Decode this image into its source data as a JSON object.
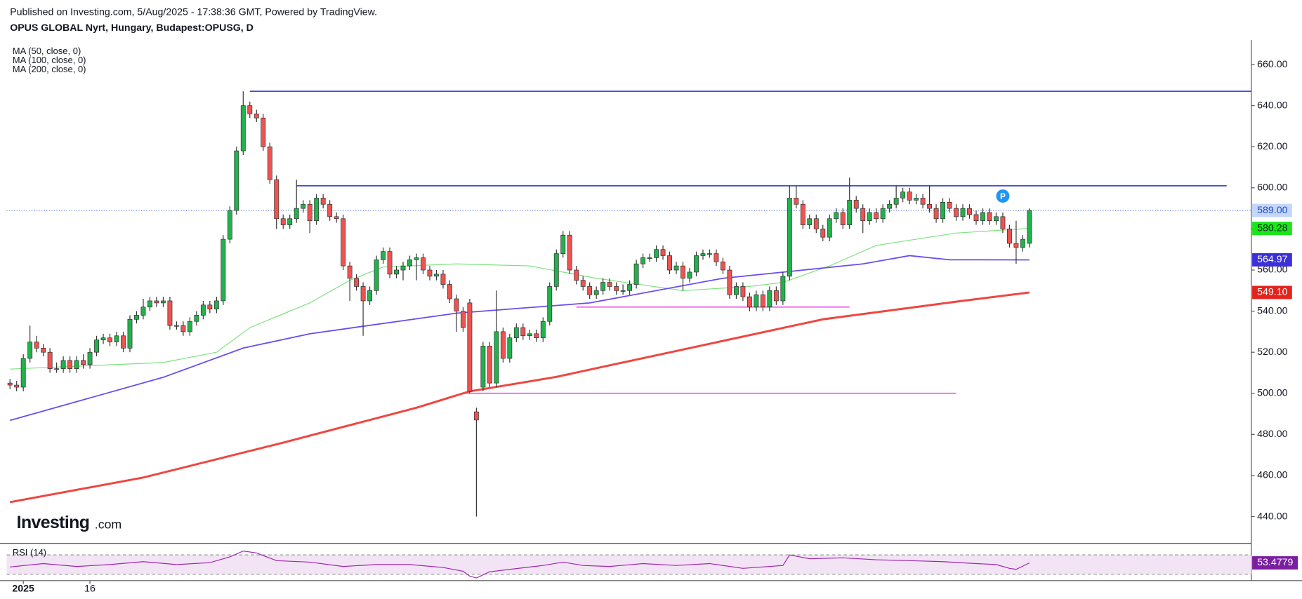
{
  "header": {
    "published": "Published on Investing.com, 5/Aug/2025 - 17:38:36 GMT, Powered by TradingView.",
    "symbol": "OPUS GLOBAL Nyrt, Hungary, Budapest:OPUSG, D"
  },
  "chart_data": {
    "type": "candlestick",
    "up_color": "#22b24c",
    "down_color": "#ef5350",
    "candles": [
      [
        505,
        507,
        502,
        504
      ],
      [
        504,
        506,
        501,
        503
      ],
      [
        503,
        519,
        501,
        517
      ],
      [
        517,
        533,
        515,
        525
      ],
      [
        525,
        528,
        520,
        522
      ],
      [
        522,
        524,
        518,
        520
      ],
      [
        520,
        522,
        510,
        512
      ],
      [
        512,
        515,
        510,
        512
      ],
      [
        512,
        518,
        510,
        516
      ],
      [
        516,
        518,
        510,
        512
      ],
      [
        512,
        518,
        510,
        516
      ],
      [
        516,
        519,
        512,
        514
      ],
      [
        514,
        522,
        512,
        520
      ],
      [
        520,
        528,
        518,
        526
      ],
      [
        526,
        529,
        524,
        527
      ],
      [
        527,
        529,
        523,
        525
      ],
      [
        525,
        530,
        523,
        528
      ],
      [
        528,
        530,
        520,
        522
      ],
      [
        522,
        538,
        520,
        536
      ],
      [
        536,
        540,
        534,
        538
      ],
      [
        538,
        546,
        536,
        542
      ],
      [
        542,
        547,
        540,
        545
      ],
      [
        545,
        547,
        542,
        544
      ],
      [
        544,
        547,
        542,
        545
      ],
      [
        545,
        547,
        531,
        533
      ],
      [
        533,
        535,
        531,
        533
      ],
      [
        533,
        535,
        528,
        530
      ],
      [
        530,
        537,
        528,
        535
      ],
      [
        535,
        540,
        533,
        538
      ],
      [
        538,
        545,
        536,
        543
      ],
      [
        543,
        545,
        539,
        541
      ],
      [
        541,
        547,
        539,
        545
      ],
      [
        545,
        577,
        543,
        575
      ],
      [
        575,
        591,
        573,
        589
      ],
      [
        589,
        620,
        587,
        618
      ],
      [
        618,
        647,
        616,
        640
      ],
      [
        640,
        642,
        634,
        636
      ],
      [
        636,
        638,
        632,
        634
      ],
      [
        634,
        636,
        618,
        620
      ],
      [
        620,
        622,
        602,
        604
      ],
      [
        604,
        606,
        580,
        585
      ],
      [
        585,
        587,
        580,
        582
      ],
      [
        582,
        587,
        580,
        585
      ],
      [
        585,
        604,
        583,
        590
      ],
      [
        590,
        594,
        588,
        592
      ],
      [
        592,
        594,
        578,
        584
      ],
      [
        584,
        597,
        582,
        595
      ],
      [
        595,
        597,
        590,
        592
      ],
      [
        592,
        594,
        584,
        586
      ],
      [
        586,
        588,
        583,
        585
      ],
      [
        585,
        587,
        560,
        562
      ],
      [
        562,
        564,
        545,
        556
      ],
      [
        556,
        558,
        550,
        552
      ],
      [
        552,
        554,
        528,
        545
      ],
      [
        545,
        552,
        543,
        550
      ],
      [
        550,
        567,
        548,
        565
      ],
      [
        565,
        571,
        563,
        569
      ],
      [
        569,
        571,
        556,
        558
      ],
      [
        558,
        562,
        556,
        560
      ],
      [
        560,
        564,
        555,
        562
      ],
      [
        562,
        567,
        560,
        565
      ],
      [
        565,
        568,
        555,
        566
      ],
      [
        566,
        568,
        558,
        560
      ],
      [
        560,
        562,
        555,
        557
      ],
      [
        557,
        560,
        555,
        558
      ],
      [
        558,
        560,
        551,
        553
      ],
      [
        553,
        555,
        544,
        546
      ],
      [
        546,
        548,
        530,
        540
      ],
      [
        540,
        542,
        530,
        532
      ],
      [
        544,
        546,
        500,
        501
      ],
      [
        491,
        493,
        440,
        487
      ],
      [
        503,
        525,
        501,
        523
      ],
      [
        523,
        525,
        503,
        505
      ],
      [
        505,
        550,
        503,
        530
      ],
      [
        530,
        532,
        515,
        517
      ],
      [
        517,
        529,
        515,
        527
      ],
      [
        527,
        534,
        525,
        532
      ],
      [
        532,
        534,
        526,
        528
      ],
      [
        528,
        531,
        526,
        529
      ],
      [
        529,
        531,
        525,
        527
      ],
      [
        527,
        537,
        525,
        535
      ],
      [
        535,
        554,
        533,
        552
      ],
      [
        552,
        570,
        550,
        568
      ],
      [
        568,
        579,
        566,
        577
      ],
      [
        577,
        579,
        558,
        560
      ],
      [
        560,
        562,
        553,
        555
      ],
      [
        555,
        557,
        550,
        552
      ],
      [
        552,
        554,
        546,
        548
      ],
      [
        548,
        552,
        546,
        550
      ],
      [
        550,
        556,
        548,
        554
      ],
      [
        554,
        556,
        550,
        552
      ],
      [
        552,
        554,
        548,
        550
      ],
      [
        550,
        553,
        548,
        550
      ],
      [
        550,
        555,
        548,
        553
      ],
      [
        553,
        565,
        551,
        563
      ],
      [
        563,
        568,
        561,
        566
      ],
      [
        566,
        568,
        564,
        566
      ],
      [
        566,
        572,
        564,
        570
      ],
      [
        570,
        572,
        565,
        567
      ],
      [
        567,
        569,
        558,
        560
      ],
      [
        560,
        564,
        558,
        562
      ],
      [
        562,
        564,
        550,
        556
      ],
      [
        556,
        561,
        554,
        559
      ],
      [
        559,
        569,
        557,
        567
      ],
      [
        567,
        570,
        565,
        568
      ],
      [
        568,
        570,
        566,
        568
      ],
      [
        568,
        570,
        562,
        564
      ],
      [
        564,
        566,
        558,
        560
      ],
      [
        560,
        562,
        546,
        548
      ],
      [
        548,
        554,
        546,
        552
      ],
      [
        552,
        554,
        545,
        547
      ],
      [
        547,
        549,
        540,
        542
      ],
      [
        542,
        550,
        540,
        548
      ],
      [
        548,
        550,
        540,
        542
      ],
      [
        542,
        552,
        540,
        550
      ],
      [
        550,
        552,
        543,
        545
      ],
      [
        545,
        559,
        543,
        557
      ],
      [
        557,
        601,
        555,
        595
      ],
      [
        595,
        601,
        590,
        592
      ],
      [
        592,
        594,
        580,
        582
      ],
      [
        582,
        587,
        580,
        585
      ],
      [
        585,
        587,
        578,
        580
      ],
      [
        580,
        582,
        574,
        576
      ],
      [
        576,
        587,
        574,
        585
      ],
      [
        585,
        590,
        583,
        588
      ],
      [
        588,
        590,
        580,
        582
      ],
      [
        582,
        605,
        580,
        594
      ],
      [
        594,
        596,
        588,
        590
      ],
      [
        590,
        592,
        578,
        584
      ],
      [
        584,
        590,
        582,
        588
      ],
      [
        588,
        590,
        583,
        585
      ],
      [
        585,
        592,
        583,
        590
      ],
      [
        590,
        594,
        588,
        592
      ],
      [
        592,
        601,
        590,
        595
      ],
      [
        595,
        600,
        593,
        598
      ],
      [
        598,
        600,
        592,
        594
      ],
      [
        594,
        597,
        592,
        595
      ],
      [
        595,
        597,
        590,
        592
      ],
      [
        592,
        601,
        588,
        590
      ],
      [
        590,
        592,
        583,
        585
      ],
      [
        585,
        595,
        583,
        593
      ],
      [
        593,
        595,
        588,
        590
      ],
      [
        590,
        592,
        584,
        586
      ],
      [
        586,
        592,
        584,
        590
      ],
      [
        590,
        592,
        585,
        587
      ],
      [
        587,
        589,
        582,
        584
      ],
      [
        584,
        590,
        582,
        588
      ],
      [
        588,
        590,
        582,
        584
      ],
      [
        584,
        588,
        582,
        586
      ],
      [
        586,
        588,
        578,
        580
      ],
      [
        580,
        582,
        571,
        573
      ],
      [
        573,
        584,
        563,
        571
      ],
      [
        571,
        577,
        569,
        575
      ],
      [
        573,
        590,
        571,
        589
      ]
    ],
    "xlim": [
      -0.5,
      186.3
    ],
    "xticks": [
      {
        "value": 2,
        "label": "2025"
      },
      {
        "value": 12,
        "label": "16"
      }
    ],
    "ylim": [
      427,
      672
    ],
    "yticks": [
      {
        "value": 440,
        "label": "440.00"
      },
      {
        "value": 460,
        "label": "460.00"
      },
      {
        "value": 480,
        "label": "480.00"
      },
      {
        "value": 500,
        "label": "500.00"
      },
      {
        "value": 520,
        "label": "520.00"
      },
      {
        "value": 540,
        "label": "540.00"
      },
      {
        "value": 560,
        "label": "560.00"
      },
      {
        "value": 580,
        "label": "580.00"
      },
      {
        "value": 600,
        "label": "600.00"
      },
      {
        "value": 620,
        "label": "620.00"
      },
      {
        "value": 640,
        "label": "640.00"
      },
      {
        "value": 660,
        "label": "660.00"
      }
    ],
    "series": [
      {
        "name": "MA (50, close, 0)",
        "color": "#7de27d",
        "width": 1,
        "x": [
          0,
          23,
          31,
          36,
          45,
          51,
          56,
          67,
          78,
          88,
          101,
          111,
          116,
          123,
          130,
          136,
          142,
          153
        ],
        "values": [
          511.8,
          515,
          520,
          532,
          544,
          555,
          561.5,
          563,
          562,
          556,
          550,
          552,
          554,
          562,
          572,
          575,
          578,
          580.28
        ]
      },
      {
        "name": "MA (100, close, 0)",
        "color": "#6a4cf0",
        "width": 1.5,
        "x": [
          0,
          23,
          35,
          45,
          67,
          87,
          107,
          128,
          135,
          141,
          153
        ],
        "values": [
          486.8,
          507.8,
          522,
          529,
          539,
          544,
          556,
          563,
          567,
          565,
          564.97
        ]
      },
      {
        "name": "MA (200, close, 0)",
        "color": "#f0453f",
        "width": 2.5,
        "x": [
          0,
          20,
          41,
          61,
          69,
          82,
          102,
          122,
          143,
          153
        ],
        "values": [
          447,
          459,
          476,
          493,
          501,
          508,
          522,
          536,
          545,
          549.1
        ]
      }
    ],
    "levels": [
      {
        "value": 647,
        "from": 36,
        "to": 186.3,
        "color": "#3f4fcf"
      },
      {
        "value": 601,
        "from": 43,
        "to": 182.6,
        "color": "#3f4fcf"
      },
      {
        "value": 542,
        "from": 85,
        "to": 126,
        "color": "#f05cf0"
      },
      {
        "value": 500,
        "from": 68,
        "to": 142,
        "color": "#f05cf0"
      }
    ],
    "price_labels": [
      {
        "value": 589,
        "label": "589.00",
        "color": "#c4d6fa",
        "text_color": "#1e4fc2",
        "dotted": true
      },
      {
        "value": 580.28,
        "label": "580.28",
        "color": "#19e619",
        "text_color": "#131722"
      },
      {
        "value": 564.97,
        "label": "564.97",
        "color": "#3a2fd8",
        "text_color": "#ffffff"
      },
      {
        "value": 549.1,
        "label": "549.10",
        "color": "#e5231d",
        "text_color": "#ffffff"
      }
    ],
    "marker": {
      "label": "P",
      "x": 149,
      "y": 596
    },
    "logo": [
      "Investing",
      ".com"
    ],
    "rsi": {
      "name": "RSI (14)",
      "color": "#9c27b0",
      "ylim": [
        20,
        82
      ],
      "bands": [
        70,
        30
      ],
      "x": [
        0,
        5,
        10,
        15,
        20,
        25,
        30,
        33,
        35,
        37,
        40,
        45,
        50,
        55,
        60,
        65,
        68,
        69,
        70,
        72,
        75,
        80,
        83,
        86,
        90,
        95,
        100,
        105,
        110,
        116,
        117,
        120,
        125,
        130,
        135,
        140,
        145,
        148,
        150,
        151,
        153
      ],
      "values": [
        45,
        52,
        46,
        50,
        56,
        50,
        54,
        66,
        78,
        74,
        58,
        55,
        46,
        50,
        50,
        44,
        36,
        26,
        22,
        35,
        40,
        48,
        55,
        48,
        46,
        52,
        48,
        52,
        42,
        48,
        70,
        62,
        64,
        60,
        58,
        56,
        52,
        50,
        42,
        40,
        53.4779
      ]
    }
  }
}
